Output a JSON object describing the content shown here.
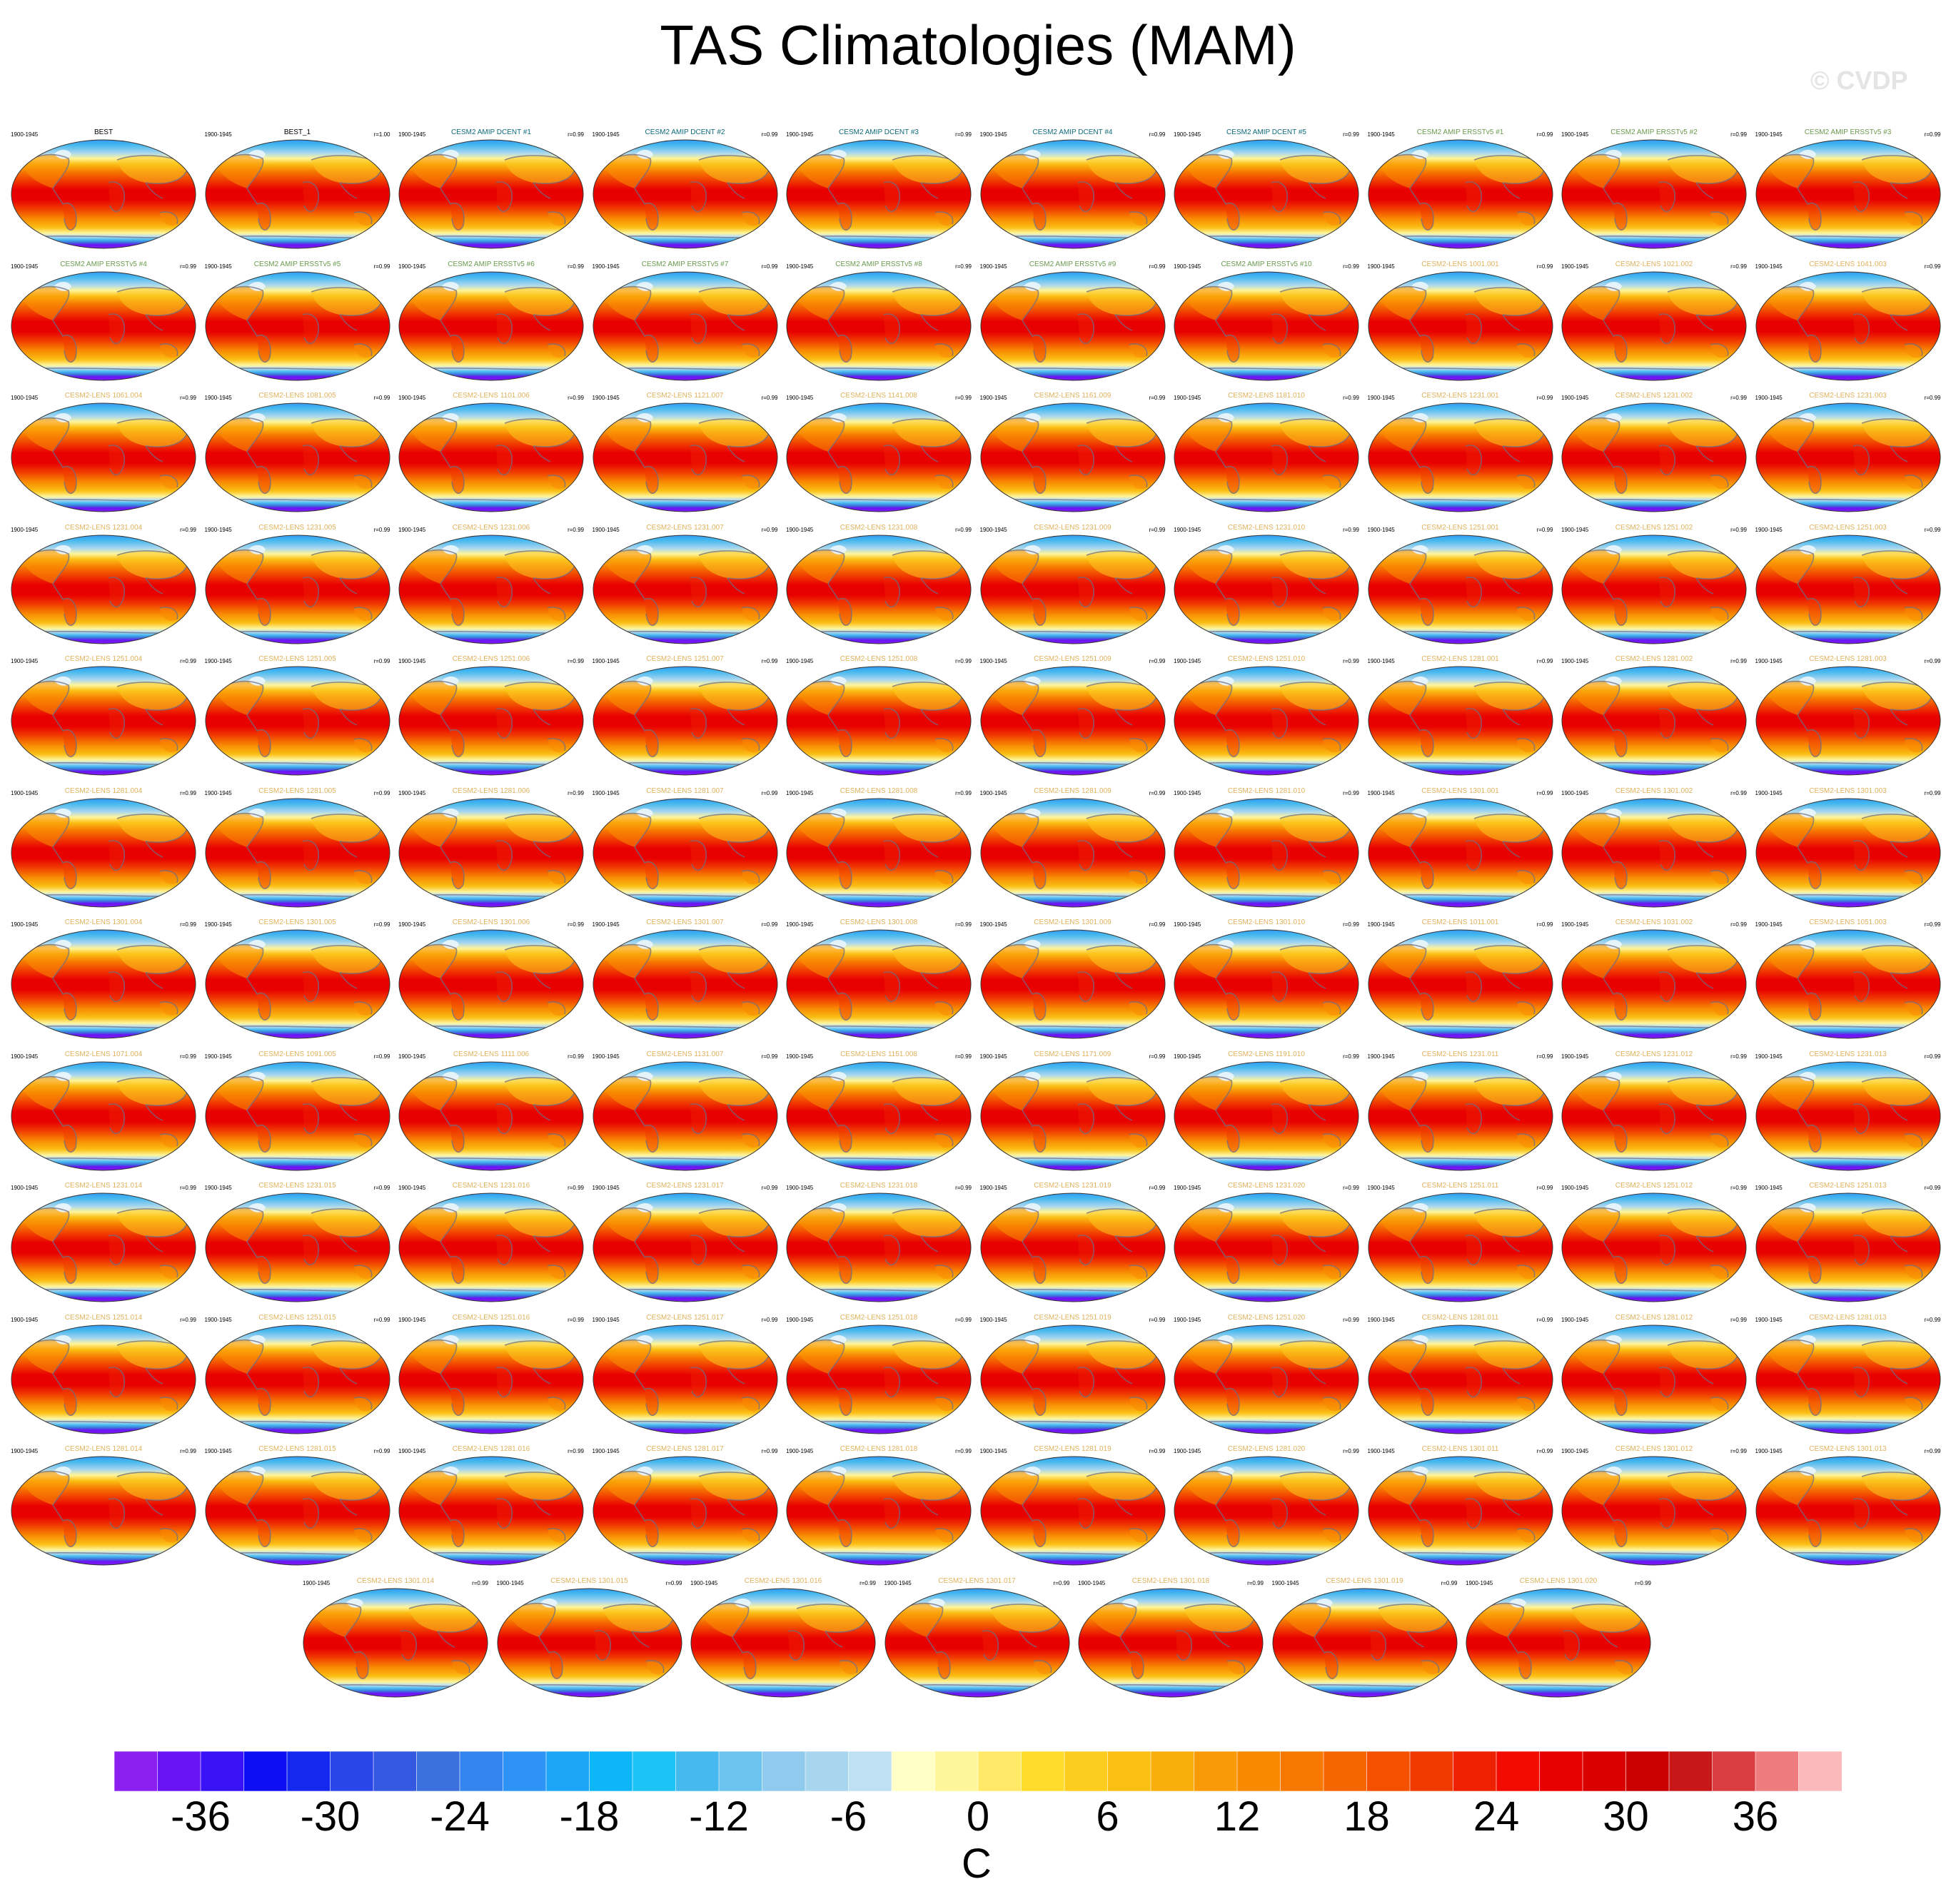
{
  "title": "TAS Climatologies (MAM)",
  "watermark": "© CVDP",
  "period": "1900-1945",
  "colors": {
    "obs_title": "#000000",
    "dcent_title": "#0f6c7a",
    "ersst_title": "#6b9a4f",
    "lens_title": "#e0b25c"
  },
  "panels": [
    {
      "title": "BEST",
      "corr": ""
    },
    {
      "title": "BEST_1",
      "corr": "r=1.00"
    },
    {
      "title": "CESM2 AMIP DCENT #1",
      "corr": "r=0.99"
    },
    {
      "title": "CESM2 AMIP DCENT #2",
      "corr": "r=0.99"
    },
    {
      "title": "CESM2 AMIP DCENT #3",
      "corr": "r=0.99"
    },
    {
      "title": "CESM2 AMIP DCENT #4",
      "corr": "r=0.99"
    },
    {
      "title": "CESM2 AMIP DCENT #5",
      "corr": "r=0.99"
    },
    {
      "title": "CESM2 AMIP ERSSTv5 #1",
      "corr": "r=0.99"
    },
    {
      "title": "CESM2 AMIP ERSSTv5 #2",
      "corr": "r=0.99"
    },
    {
      "title": "CESM2 AMIP ERSSTv5 #3",
      "corr": "r=0.99"
    },
    {
      "title": "CESM2 AMIP ERSSTv5 #4",
      "corr": "r=0.99"
    },
    {
      "title": "CESM2 AMIP ERSSTv5 #5",
      "corr": "r=0.99"
    },
    {
      "title": "CESM2 AMIP ERSSTv5 #6",
      "corr": "r=0.99"
    },
    {
      "title": "CESM2 AMIP ERSSTv5 #7",
      "corr": "r=0.99"
    },
    {
      "title": "CESM2 AMIP ERSSTv5 #8",
      "corr": "r=0.99"
    },
    {
      "title": "CESM2 AMIP ERSSTv5 #9",
      "corr": "r=0.99"
    },
    {
      "title": "CESM2 AMIP ERSSTv5 #10",
      "corr": "r=0.99"
    },
    {
      "title": "CESM2-LENS 1001.001",
      "corr": "r=0.99"
    },
    {
      "title": "CESM2-LENS 1021.002",
      "corr": "r=0.99"
    },
    {
      "title": "CESM2-LENS 1041.003",
      "corr": "r=0.99"
    },
    {
      "title": "CESM2-LENS 1061.004",
      "corr": "r=0.99"
    },
    {
      "title": "CESM2-LENS 1081.005",
      "corr": "r=0.99"
    },
    {
      "title": "CESM2-LENS 1101.006",
      "corr": "r=0.99"
    },
    {
      "title": "CESM2-LENS 1121.007",
      "corr": "r=0.99"
    },
    {
      "title": "CESM2-LENS 1141.008",
      "corr": "r=0.99"
    },
    {
      "title": "CESM2-LENS 1161.009",
      "corr": "r=0.99"
    },
    {
      "title": "CESM2-LENS 1181.010",
      "corr": "r=0.99"
    },
    {
      "title": "CESM2-LENS 1231.001",
      "corr": "r=0.99"
    },
    {
      "title": "CESM2-LENS 1231.002",
      "corr": "r=0.99"
    },
    {
      "title": "CESM2-LENS 1231.003",
      "corr": "r=0.99"
    },
    {
      "title": "CESM2-LENS 1231.004",
      "corr": "r=0.99"
    },
    {
      "title": "CESM2-LENS 1231.005",
      "corr": "r=0.99"
    },
    {
      "title": "CESM2-LENS 1231.006",
      "corr": "r=0.99"
    },
    {
      "title": "CESM2-LENS 1231.007",
      "corr": "r=0.99"
    },
    {
      "title": "CESM2-LENS 1231.008",
      "corr": "r=0.99"
    },
    {
      "title": "CESM2-LENS 1231.009",
      "corr": "r=0.99"
    },
    {
      "title": "CESM2-LENS 1231.010",
      "corr": "r=0.99"
    },
    {
      "title": "CESM2-LENS 1251.001",
      "corr": "r=0.99"
    },
    {
      "title": "CESM2-LENS 1251.002",
      "corr": "r=0.99"
    },
    {
      "title": "CESM2-LENS 1251.003",
      "corr": "r=0.99"
    },
    {
      "title": "CESM2-LENS 1251.004",
      "corr": "r=0.99"
    },
    {
      "title": "CESM2-LENS 1251.005",
      "corr": "r=0.99"
    },
    {
      "title": "CESM2-LENS 1251.006",
      "corr": "r=0.99"
    },
    {
      "title": "CESM2-LENS 1251.007",
      "corr": "r=0.99"
    },
    {
      "title": "CESM2-LENS 1251.008",
      "corr": "r=0.99"
    },
    {
      "title": "CESM2-LENS 1251.009",
      "corr": "r=0.99"
    },
    {
      "title": "CESM2-LENS 1251.010",
      "corr": "r=0.99"
    },
    {
      "title": "CESM2-LENS 1281.001",
      "corr": "r=0.99"
    },
    {
      "title": "CESM2-LENS 1281.002",
      "corr": "r=0.99"
    },
    {
      "title": "CESM2-LENS 1281.003",
      "corr": "r=0.99"
    },
    {
      "title": "CESM2-LENS 1281.004",
      "corr": "r=0.99"
    },
    {
      "title": "CESM2-LENS 1281.005",
      "corr": "r=0.99"
    },
    {
      "title": "CESM2-LENS 1281.006",
      "corr": "r=0.99"
    },
    {
      "title": "CESM2-LENS 1281.007",
      "corr": "r=0.99"
    },
    {
      "title": "CESM2-LENS 1281.008",
      "corr": "r=0.99"
    },
    {
      "title": "CESM2-LENS 1281.009",
      "corr": "r=0.99"
    },
    {
      "title": "CESM2-LENS 1281.010",
      "corr": "r=0.99"
    },
    {
      "title": "CESM2-LENS 1301.001",
      "corr": "r=0.99"
    },
    {
      "title": "CESM2-LENS 1301.002",
      "corr": "r=0.99"
    },
    {
      "title": "CESM2-LENS 1301.003",
      "corr": "r=0.99"
    },
    {
      "title": "CESM2-LENS 1301.004",
      "corr": "r=0.99"
    },
    {
      "title": "CESM2-LENS 1301.005",
      "corr": "r=0.99"
    },
    {
      "title": "CESM2-LENS 1301.006",
      "corr": "r=0.99"
    },
    {
      "title": "CESM2-LENS 1301.007",
      "corr": "r=0.99"
    },
    {
      "title": "CESM2-LENS 1301.008",
      "corr": "r=0.99"
    },
    {
      "title": "CESM2-LENS 1301.009",
      "corr": "r=0.99"
    },
    {
      "title": "CESM2-LENS 1301.010",
      "corr": "r=0.99"
    },
    {
      "title": "CESM2-LENS 1011.001",
      "corr": "r=0.99"
    },
    {
      "title": "CESM2-LENS 1031.002",
      "corr": "r=0.99"
    },
    {
      "title": "CESM2-LENS 1051.003",
      "corr": "r=0.99"
    },
    {
      "title": "CESM2-LENS 1071.004",
      "corr": "r=0.99"
    },
    {
      "title": "CESM2-LENS 1091.005",
      "corr": "r=0.99"
    },
    {
      "title": "CESM2-LENS 1111.006",
      "corr": "r=0.99"
    },
    {
      "title": "CESM2-LENS 1131.007",
      "corr": "r=0.99"
    },
    {
      "title": "CESM2-LENS 1151.008",
      "corr": "r=0.99"
    },
    {
      "title": "CESM2-LENS 1171.009",
      "corr": "r=0.99"
    },
    {
      "title": "CESM2-LENS 1191.010",
      "corr": "r=0.99"
    },
    {
      "title": "CESM2-LENS 1231.011",
      "corr": "r=0.99"
    },
    {
      "title": "CESM2-LENS 1231.012",
      "corr": "r=0.99"
    },
    {
      "title": "CESM2-LENS 1231.013",
      "corr": "r=0.99"
    },
    {
      "title": "CESM2-LENS 1231.014",
      "corr": "r=0.99"
    },
    {
      "title": "CESM2-LENS 1231.015",
      "corr": "r=0.99"
    },
    {
      "title": "CESM2-LENS 1231.016",
      "corr": "r=0.99"
    },
    {
      "title": "CESM2-LENS 1231.017",
      "corr": "r=0.99"
    },
    {
      "title": "CESM2-LENS 1231.018",
      "corr": "r=0.99"
    },
    {
      "title": "CESM2-LENS 1231.019",
      "corr": "r=0.99"
    },
    {
      "title": "CESM2-LENS 1231.020",
      "corr": "r=0.99"
    },
    {
      "title": "CESM2-LENS 1251.011",
      "corr": "r=0.99"
    },
    {
      "title": "CESM2-LENS 1251.012",
      "corr": "r=0.99"
    },
    {
      "title": "CESM2-LENS 1251.013",
      "corr": "r=0.99"
    },
    {
      "title": "CESM2-LENS 1251.014",
      "corr": "r=0.99"
    },
    {
      "title": "CESM2-LENS 1251.015",
      "corr": "r=0.99"
    },
    {
      "title": "CESM2-LENS 1251.016",
      "corr": "r=0.99"
    },
    {
      "title": "CESM2-LENS 1251.017",
      "corr": "r=0.99"
    },
    {
      "title": "CESM2-LENS 1251.018",
      "corr": "r=0.99"
    },
    {
      "title": "CESM2-LENS 1251.019",
      "corr": "r=0.99"
    },
    {
      "title": "CESM2-LENS 1251.020",
      "corr": "r=0.99"
    },
    {
      "title": "CESM2-LENS 1281.011",
      "corr": "r=0.99"
    },
    {
      "title": "CESM2-LENS 1281.012",
      "corr": "r=0.99"
    },
    {
      "title": "CESM2-LENS 1281.013",
      "corr": "r=0.99"
    },
    {
      "title": "CESM2-LENS 1281.014",
      "corr": "r=0.99"
    },
    {
      "title": "CESM2-LENS 1281.015",
      "corr": "r=0.99"
    },
    {
      "title": "CESM2-LENS 1281.016",
      "corr": "r=0.99"
    },
    {
      "title": "CESM2-LENS 1281.017",
      "corr": "r=0.99"
    },
    {
      "title": "CESM2-LENS 1281.018",
      "corr": "r=0.99"
    },
    {
      "title": "CESM2-LENS 1281.019",
      "corr": "r=0.99"
    },
    {
      "title": "CESM2-LENS 1281.020",
      "corr": "r=0.99"
    },
    {
      "title": "CESM2-LENS 1301.011",
      "corr": "r=0.99"
    },
    {
      "title": "CESM2-LENS 1301.012",
      "corr": "r=0.99"
    },
    {
      "title": "CESM2-LENS 1301.013",
      "corr": "r=0.99"
    },
    {
      "title": "CESM2-LENS 1301.014",
      "corr": "r=0.99"
    },
    {
      "title": "CESM2-LENS 1301.015",
      "corr": "r=0.99"
    },
    {
      "title": "CESM2-LENS 1301.016",
      "corr": "r=0.99"
    },
    {
      "title": "CESM2-LENS 1301.017",
      "corr": "r=0.99"
    },
    {
      "title": "CESM2-LENS 1301.018",
      "corr": "r=0.99"
    },
    {
      "title": "CESM2-LENS 1301.019",
      "corr": "r=0.99"
    },
    {
      "title": "CESM2-LENS 1301.020",
      "corr": "r=0.99"
    }
  ],
  "chart_data": {
    "type": "heatmap",
    "title": "TAS Climatologies (MAM)",
    "colorbar": {
      "units": "C",
      "tick_labels": [
        "-36",
        "-30",
        "-24",
        "-18",
        "-12",
        "-6",
        "0",
        "6",
        "12",
        "18",
        "24",
        "30",
        "36"
      ],
      "tick_values": [
        -36,
        -30,
        -24,
        -18,
        -12,
        -6,
        0,
        6,
        12,
        18,
        24,
        30,
        36
      ],
      "colors": [
        "#8a1ff0",
        "#6a14f5",
        "#3a12f8",
        "#0e0ef5",
        "#1428f0",
        "#2a46e8",
        "#3558e0",
        "#3c70dc",
        "#3585f0",
        "#2d93f5",
        "#1da6f5",
        "#0db6f8",
        "#1ec3f5",
        "#46b9ef",
        "#6cc3ed",
        "#90cbee",
        "#a8d6ef",
        "#bfe0f2",
        "#ffffc6",
        "#fff59a",
        "#ffe966",
        "#ffdc2c",
        "#fccd1e",
        "#fbbf14",
        "#faae0c",
        "#f99b06",
        "#f88a02",
        "#f77800",
        "#f56500",
        "#f45000",
        "#f03a00",
        "#ee2200",
        "#f30a00",
        "#e80000",
        "#da0000",
        "#c80000",
        "#c71718",
        "#d93d40",
        "#ee7c7f",
        "#fab9bc"
      ]
    },
    "panel_type": "global surface air temperature map",
    "n_panels": 117,
    "grid": "off"
  }
}
